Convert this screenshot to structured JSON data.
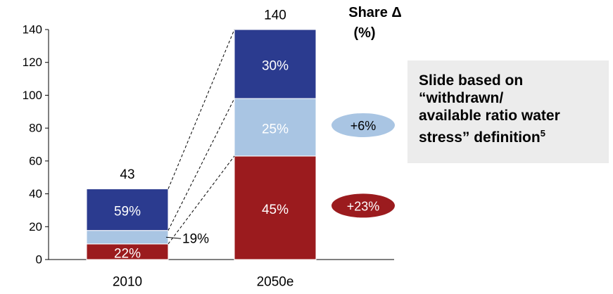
{
  "chart_data": {
    "type": "bar",
    "stacked": true,
    "categories": [
      "2010",
      "2050e"
    ],
    "ylim": [
      0,
      140
    ],
    "yticks": [
      0,
      20,
      40,
      60,
      80,
      100,
      120,
      140
    ],
    "ytick_labels": [
      "0",
      "20",
      "40",
      "60",
      "80",
      "100",
      "120",
      "140"
    ],
    "grid": false,
    "totals": [
      43,
      140
    ],
    "total_labels": [
      "43",
      "140"
    ],
    "series": [
      {
        "segment_values": [
          9.5,
          63
        ],
        "share_labels": [
          "22%",
          "45%"
        ],
        "color": "#9b1b1e"
      },
      {
        "segment_values": [
          8.2,
          35
        ],
        "share_labels": [
          "19%",
          "25%"
        ],
        "color": "#a9c5e3"
      },
      {
        "segment_values": [
          25.3,
          42
        ],
        "share_labels": [
          "59%",
          "30%"
        ],
        "color": "#2b3b8f"
      }
    ],
    "share_delta_header": [
      "Share Δ",
      "(%)"
    ],
    "share_deltas": [
      {
        "label": "+6%",
        "color": "#a9c5e3",
        "text_color": "#000000"
      },
      {
        "label": "+23%",
        "color": "#9b1b1e",
        "text_color": "#ffffff"
      }
    ]
  },
  "note": {
    "lines": [
      "Slide based on",
      "“withdrawn/",
      "available ratio water",
      "stress” definition"
    ],
    "footnote": "5"
  }
}
